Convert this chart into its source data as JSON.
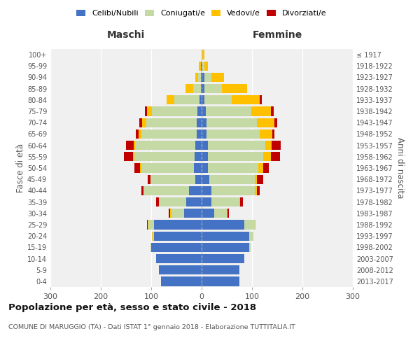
{
  "age_groups": [
    "0-4",
    "5-9",
    "10-14",
    "15-19",
    "20-24",
    "25-29",
    "30-34",
    "35-39",
    "40-44",
    "45-49",
    "50-54",
    "55-59",
    "60-64",
    "65-69",
    "70-74",
    "75-79",
    "80-84",
    "85-89",
    "90-94",
    "95-99",
    "100+"
  ],
  "birth_years": [
    "2013-2017",
    "2008-2012",
    "2003-2007",
    "1998-2002",
    "1993-1997",
    "1988-1992",
    "1983-1987",
    "1978-1982",
    "1973-1977",
    "1968-1972",
    "1963-1967",
    "1958-1962",
    "1953-1957",
    "1948-1952",
    "1943-1947",
    "1938-1942",
    "1933-1937",
    "1928-1932",
    "1923-1927",
    "1918-1922",
    "≤ 1917"
  ],
  "males": {
    "celibi": [
      80,
      85,
      90,
      100,
      95,
      95,
      35,
      30,
      25,
      12,
      15,
      14,
      12,
      10,
      10,
      8,
      4,
      2,
      2,
      2,
      0
    ],
    "coniugati": [
      0,
      0,
      0,
      1,
      2,
      10,
      25,
      55,
      90,
      90,
      105,
      120,
      120,
      110,
      100,
      90,
      50,
      15,
      5,
      0,
      0
    ],
    "vedovi": [
      0,
      0,
      0,
      0,
      2,
      2,
      2,
      0,
      0,
      0,
      2,
      2,
      3,
      5,
      8,
      10,
      15,
      15,
      5,
      3,
      0
    ],
    "divorziati": [
      0,
      0,
      0,
      0,
      0,
      2,
      3,
      5,
      5,
      5,
      12,
      18,
      15,
      5,
      5,
      5,
      0,
      0,
      0,
      0,
      0
    ]
  },
  "females": {
    "nubili": [
      75,
      75,
      85,
      95,
      95,
      85,
      25,
      20,
      20,
      15,
      12,
      12,
      12,
      10,
      10,
      8,
      5,
      5,
      5,
      2,
      0
    ],
    "coniugate": [
      0,
      0,
      0,
      2,
      8,
      20,
      25,
      55,
      85,
      90,
      100,
      110,
      115,
      105,
      100,
      90,
      55,
      35,
      15,
      3,
      2
    ],
    "vedove": [
      0,
      0,
      0,
      0,
      0,
      2,
      2,
      2,
      5,
      5,
      10,
      15,
      12,
      25,
      35,
      40,
      55,
      50,
      25,
      8,
      3
    ],
    "divorziate": [
      0,
      0,
      0,
      0,
      0,
      0,
      2,
      5,
      5,
      12,
      12,
      18,
      18,
      5,
      5,
      5,
      5,
      0,
      0,
      0,
      0
    ]
  },
  "colors": {
    "celibi": "#4472c4",
    "coniugati": "#c5d9a5",
    "vedovi": "#ffc000",
    "divorziati": "#c00000"
  },
  "xlim": 300,
  "title": "Popolazione per età, sesso e stato civile - 2018",
  "subtitle": "COMUNE DI MARUGGIO (TA) - Dati ISTAT 1° gennaio 2018 - Elaborazione TUTTITALIA.IT",
  "ylabel_left": "Fasce di età",
  "ylabel_right": "Anni di nascita",
  "xlabel_left": "Maschi",
  "xlabel_right": "Femmine",
  "legend_labels": [
    "Celibi/Nubili",
    "Coniugati/e",
    "Vedovi/e",
    "Divorziati/e"
  ],
  "background_color": "#f0f0f0"
}
